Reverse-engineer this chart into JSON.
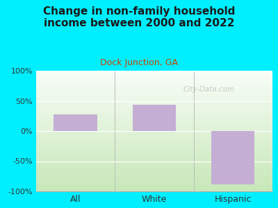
{
  "title": "Change in non-family household\nincome between 2000 and 2022",
  "subtitle": "Dock Junction, GA",
  "categories": [
    "All",
    "White",
    "Hispanic"
  ],
  "values": [
    28,
    44,
    -88
  ],
  "bar_color": "#c5aed4",
  "title_color": "#1a1a1a",
  "subtitle_color": "#cc4400",
  "background_outer": "#00efff",
  "ylim": [
    -100,
    100
  ],
  "yticks": [
    -100,
    -50,
    0,
    50,
    100
  ],
  "ytick_labels": [
    "-100%",
    "-50%",
    "0%",
    "50%",
    "100%"
  ],
  "watermark": "City-Data.com",
  "bar_width": 0.55,
  "grad_top": "#f8fdf8",
  "grad_bottom": "#c8e8b8"
}
